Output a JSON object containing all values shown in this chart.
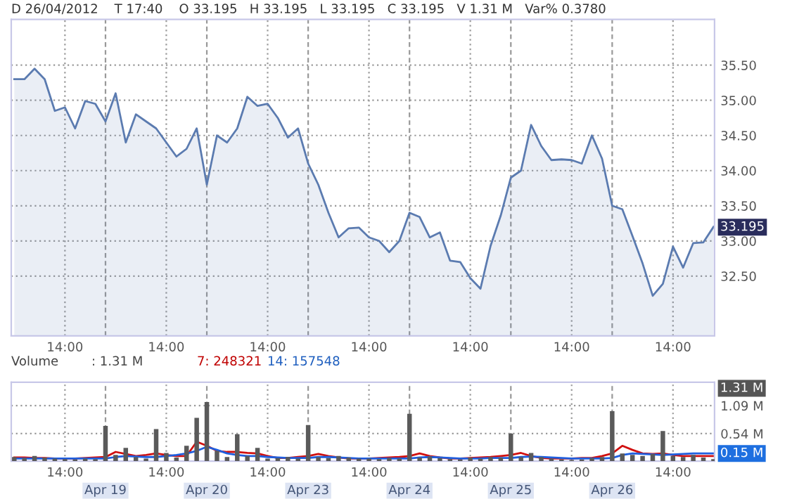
{
  "chart_data": [
    {
      "type": "area",
      "annotations": [
        "D 26/04/2012    T 17:40    O 33.195   H 33.195   L 33.195   C 33.195   V 1.31 M   Var% 0.3780",
        {
          "text": "33.195",
          "y": 33.195
        }
      ],
      "categories": [
        null,
        null,
        null,
        null,
        null,
        "14:00",
        null,
        null,
        null,
        null,
        null,
        null,
        null,
        null,
        null,
        "14:00",
        null,
        null,
        null,
        null,
        null,
        null,
        null,
        null,
        null,
        "14:00",
        null,
        null,
        null,
        null,
        null,
        null,
        null,
        null,
        null,
        "14:00",
        null,
        null,
        null,
        null,
        null,
        null,
        null,
        null,
        null,
        "14:00",
        null,
        null,
        null,
        null,
        null,
        null,
        null,
        null,
        null,
        "14:00",
        null,
        null,
        null,
        null,
        null,
        null,
        null,
        null,
        null,
        "14:00",
        null,
        null,
        null,
        null
      ],
      "ylim": [
        31.65,
        36.15
      ],
      "yticks": [
        {
          "value": 32.5,
          "label": "32.50"
        },
        {
          "value": 33,
          "label": "33.00"
        },
        {
          "value": 33.5,
          "label": "33.50"
        },
        {
          "value": 34,
          "label": "34.00"
        },
        {
          "value": 34.5,
          "label": "34.50"
        },
        {
          "value": 35,
          "label": "35.00"
        },
        {
          "value": 35.5,
          "label": "35.50"
        }
      ],
      "grid": true,
      "series": [
        {
          "color": "#5b7bb0",
          "values": [
            35.3,
            35.3,
            35.45,
            35.3,
            34.85,
            34.9,
            34.6,
            34.99,
            34.95,
            34.7,
            35.1,
            34.4,
            34.8,
            34.7,
            34.6,
            34.4,
            34.2,
            34.31,
            34.6,
            33.8,
            34.5,
            34.4,
            34.6,
            35.05,
            34.92,
            34.95,
            34.75,
            34.47,
            34.6,
            34.1,
            33.8,
            33.4,
            33.05,
            33.18,
            33.19,
            33.05,
            33.0,
            32.84,
            33.0,
            33.4,
            33.34,
            33.05,
            33.12,
            32.72,
            32.7,
            32.47,
            32.32,
            32.93,
            33.36,
            33.9,
            34.0,
            34.65,
            34.35,
            34.15,
            34.16,
            34.15,
            34.1,
            34.5,
            34.17,
            33.5,
            33.45,
            33.07,
            32.68,
            32.22,
            32.39,
            32.92,
            32.62,
            32.97,
            32.98,
            33.2
          ]
        }
      ]
    },
    {
      "type": "bar",
      "annotations": [
        "Volume",
        ": 1.31 M",
        "7: 248321",
        "14: 157548",
        "1.31 M",
        {
          "text": "0.15 M",
          "y": 0.15
        }
      ],
      "categories": [
        null,
        null,
        null,
        null,
        null,
        "14:00",
        null,
        null,
        null,
        "Apr 19",
        null,
        null,
        null,
        null,
        null,
        "14:00",
        null,
        null,
        null,
        "Apr 20",
        null,
        null,
        null,
        null,
        null,
        "14:00",
        null,
        null,
        null,
        "Apr 23",
        null,
        null,
        null,
        null,
        null,
        "14:00",
        null,
        null,
        null,
        "Apr 24",
        null,
        null,
        null,
        null,
        null,
        "14:00",
        null,
        null,
        null,
        "Apr 25",
        null,
        null,
        null,
        null,
        null,
        "14:00",
        null,
        null,
        null,
        "Apr 26",
        null,
        null,
        null,
        null,
        null,
        "14:00",
        null,
        null,
        null,
        null
      ],
      "ylim": [
        0,
        1.55
      ],
      "yticks": [
        {
          "value": 0.54,
          "label": "0.54 M"
        },
        {
          "value": 1.09,
          "label": "1.09 M"
        }
      ],
      "grid": true,
      "series": [
        {
          "color": "#5a5a5a",
          "values": [
            0.08,
            0.06,
            0.1,
            0.07,
            0.05,
            0.04,
            0.03,
            0.05,
            0.04,
            0.69,
            0.12,
            0.26,
            0.08,
            0.05,
            0.63,
            0.16,
            0.07,
            0.3,
            0.85,
            1.16,
            0.2,
            0.08,
            0.53,
            0.1,
            0.26,
            0.05,
            0.06,
            0.08,
            0.05,
            0.71,
            0.08,
            0.06,
            0.1,
            0.07,
            0.05,
            0.05,
            0.04,
            0.06,
            0.05,
            0.93,
            0.07,
            0.09,
            0.06,
            0.04,
            0.03,
            0.07,
            0.05,
            0.08,
            0.07,
            0.54,
            0.08,
            0.16,
            0.08,
            0.05,
            0.03,
            0.02,
            0.03,
            0.06,
            0.08,
            0.98,
            0.15,
            0.12,
            0.1,
            0.14,
            0.59,
            0.1,
            0.08,
            0.12,
            0.07,
            0.04
          ]
        },
        {
          "type": "line",
          "color": "#d01010",
          "values": [
            0.07,
            0.07,
            0.06,
            0.06,
            0.05,
            0.05,
            0.05,
            0.06,
            0.07,
            0.08,
            0.18,
            0.14,
            0.1,
            0.12,
            0.15,
            0.12,
            0.1,
            0.1,
            0.38,
            0.3,
            0.2,
            0.18,
            0.18,
            0.16,
            0.15,
            0.1,
            0.06,
            0.06,
            0.08,
            0.1,
            0.14,
            0.1,
            0.07,
            0.05,
            0.05,
            0.05,
            0.06,
            0.07,
            0.08,
            0.1,
            0.15,
            0.1,
            0.07,
            0.05,
            0.05,
            0.06,
            0.07,
            0.08,
            0.1,
            0.12,
            0.16,
            0.1,
            0.06,
            0.05,
            0.05,
            0.05,
            0.06,
            0.06,
            0.1,
            0.15,
            0.3,
            0.22,
            0.15,
            0.14,
            0.15,
            0.12,
            0.1,
            0.1,
            0.1,
            0.1
          ]
        },
        {
          "type": "line",
          "color": "#1f5fdf",
          "values": [
            0.05,
            0.05,
            0.05,
            0.05,
            0.05,
            0.05,
            0.05,
            0.05,
            0.05,
            0.05,
            0.08,
            0.1,
            0.09,
            0.08,
            0.08,
            0.1,
            0.12,
            0.15,
            0.2,
            0.28,
            0.22,
            0.15,
            0.12,
            0.1,
            0.1,
            0.08,
            0.07,
            0.06,
            0.06,
            0.06,
            0.08,
            0.08,
            0.07,
            0.06,
            0.05,
            0.05,
            0.05,
            0.05,
            0.05,
            0.05,
            0.07,
            0.08,
            0.07,
            0.06,
            0.05,
            0.05,
            0.05,
            0.06,
            0.06,
            0.06,
            0.08,
            0.09,
            0.08,
            0.07,
            0.06,
            0.05,
            0.05,
            0.05,
            0.05,
            0.06,
            0.12,
            0.15,
            0.14,
            0.13,
            0.12,
            0.13,
            0.14,
            0.15,
            0.15,
            0.15
          ]
        }
      ]
    }
  ]
}
